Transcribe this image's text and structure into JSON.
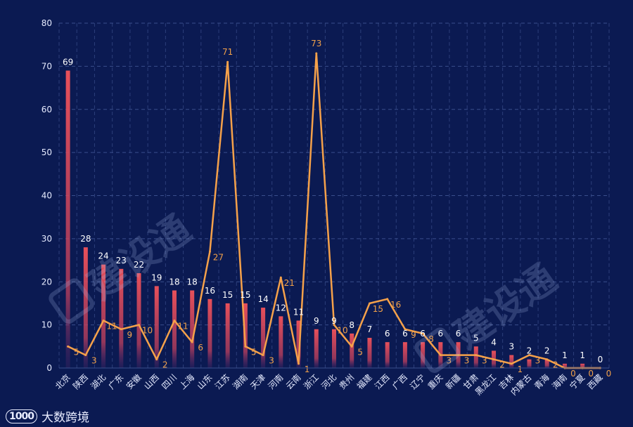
{
  "chart_data": {
    "type": "bar",
    "categories": [
      "北京",
      "陕西",
      "湖北",
      "广东",
      "安徽",
      "山西",
      "四川",
      "上海",
      "山东",
      "江苏",
      "湖南",
      "天津",
      "河南",
      "云南",
      "浙江",
      "河北",
      "贵州",
      "福建",
      "江西",
      "广西",
      "辽宁",
      "重庆",
      "新疆",
      "甘肃",
      "黑龙江",
      "吉林",
      "内蒙古",
      "青海",
      "海南",
      "宁夏",
      "西藏"
    ],
    "series": [
      {
        "values": [
          69,
          28,
          24,
          23,
          22,
          19,
          18,
          18,
          16,
          15,
          15,
          14,
          12,
          11,
          9,
          9,
          8,
          7,
          6,
          6,
          6,
          6,
          6,
          5,
          4,
          3,
          2,
          2,
          1,
          1,
          0
        ],
        "color": "#e0505a"
      },
      {
        "values": [
          5,
          3,
          11,
          9,
          10,
          2,
          11,
          6,
          27,
          71,
          5,
          3,
          21,
          1,
          73,
          10,
          5,
          15,
          16,
          9,
          8,
          3,
          3,
          3,
          2,
          1,
          3,
          2,
          0,
          0,
          0
        ],
        "color": "#f5a14a"
      }
    ],
    "ylim": [
      0,
      80
    ],
    "yticks": [
      0,
      10,
      20,
      30,
      40,
      50,
      60,
      70,
      80
    ],
    "grid": true
  },
  "watermark": {
    "text": "建设通"
  },
  "brand": {
    "logo": "1000",
    "text": "大数跨境"
  },
  "colors": {
    "background": "#0b1a52",
    "grid": "#3a4e8c"
  }
}
